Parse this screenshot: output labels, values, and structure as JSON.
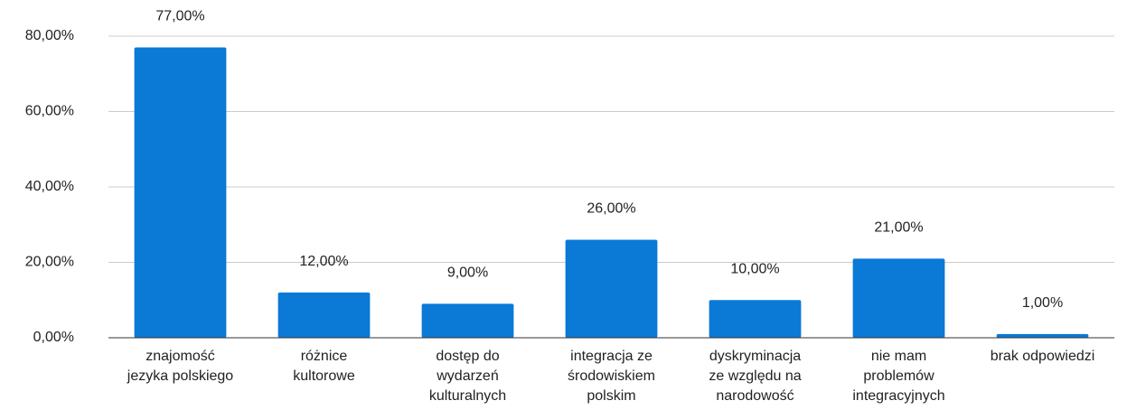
{
  "chart_data": {
    "type": "bar",
    "categories": [
      "znajomość jezyka polskiego",
      "różnice kultorowe",
      "dostęp do wydarzeń kulturalnych",
      "integracja ze środowiskiem polskim",
      "dyskryminacja ze względu na narodowość",
      "nie mam problemów integracyjnych",
      "brak odpowiedzi"
    ],
    "values": [
      77,
      12,
      9,
      26,
      10,
      21,
      1
    ],
    "value_labels": [
      "77,00%",
      "12,00%",
      "9,00%",
      "26,00%",
      "10,00%",
      "21,00%",
      "1,00%"
    ],
    "color": "#0b79d6",
    "ylim": [
      0,
      80
    ],
    "yticks": [
      {
        "value": 0,
        "label": "0,00%"
      },
      {
        "value": 20,
        "label": "20,00%"
      },
      {
        "value": 40,
        "label": "40,00%"
      },
      {
        "value": 60,
        "label": "60,00%"
      },
      {
        "value": 80,
        "label": "80,00%"
      }
    ],
    "grid": true
  }
}
